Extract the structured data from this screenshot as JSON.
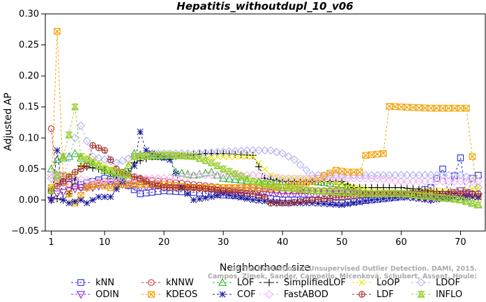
{
  "chart_data": {
    "type": "line",
    "title": "Hepatitis_withoutdupl_10_v06",
    "xlabel": "Neighborhood size",
    "ylabel": "Adjusted AP",
    "xlim": [
      1,
      73
    ],
    "ylim": [
      -0.05,
      0.3
    ],
    "xticks": [
      "1",
      "10",
      "20",
      "30",
      "40",
      "50",
      "60",
      "70"
    ],
    "yticks": [
      "−0.05",
      "0.00",
      "0.05",
      "0.10",
      "0.15",
      "0.20",
      "0.25",
      "0.30"
    ],
    "credit_line1": "Campos, Zimek, Sander, Campello, Micenková, Schubert, Assent, Houle:",
    "credit_line2": "On the Evaluation of Unsupervised Outlier Detection. DAMI, 2015.",
    "series": [
      {
        "name": "kNN",
        "color": "#2a2ad4",
        "marker": "square",
        "anchors": [
          [
            1,
            0.015
          ],
          [
            2,
            0.04
          ],
          [
            4,
            0.035
          ],
          [
            6,
            0.025
          ],
          [
            8,
            0.03
          ],
          [
            10,
            0.035
          ],
          [
            13,
            0.03
          ],
          [
            16,
            0.01
          ],
          [
            20,
            0.015
          ],
          [
            25,
            0.012
          ],
          [
            30,
            0.008
          ],
          [
            35,
            0.005
          ],
          [
            40,
            0.0
          ],
          [
            45,
            0.0
          ],
          [
            50,
            -0.005
          ],
          [
            55,
            0.0
          ],
          [
            60,
            0.005
          ],
          [
            65,
            0.02
          ],
          [
            67,
            0.05
          ],
          [
            68,
            0.01
          ],
          [
            70,
            0.068
          ],
          [
            71,
            0.005
          ],
          [
            72,
            0.035
          ],
          [
            73,
            0.04
          ]
        ]
      },
      {
        "name": "kNNW",
        "color": "#d42a2a",
        "marker": "circle",
        "anchors": [
          [
            1,
            0.115
          ],
          [
            2,
            0.03
          ],
          [
            4,
            0.025
          ],
          [
            6,
            0.02
          ],
          [
            8,
            0.025
          ],
          [
            10,
            0.03
          ],
          [
            13,
            0.03
          ],
          [
            16,
            0.033
          ],
          [
            20,
            0.03
          ],
          [
            25,
            0.025
          ],
          [
            30,
            0.02
          ],
          [
            35,
            0.02
          ],
          [
            40,
            0.015
          ],
          [
            45,
            0.015
          ],
          [
            50,
            0.015
          ],
          [
            55,
            0.01
          ],
          [
            60,
            0.01
          ],
          [
            65,
            0.01
          ],
          [
            70,
            0.01
          ],
          [
            73,
            0.01
          ]
        ]
      },
      {
        "name": "LOF",
        "color": "#2ab82a",
        "marker": "triangle-up",
        "anchors": [
          [
            1,
            0.05
          ],
          [
            2,
            0.065
          ],
          [
            4,
            0.07
          ],
          [
            5,
            0.075
          ],
          [
            7,
            0.06
          ],
          [
            9,
            0.055
          ],
          [
            11,
            0.04
          ],
          [
            13,
            0.035
          ],
          [
            15,
            0.075
          ],
          [
            18,
            0.07
          ],
          [
            21,
            0.07
          ],
          [
            22,
            0.045
          ],
          [
            25,
            0.04
          ],
          [
            28,
            0.045
          ],
          [
            30,
            0.035
          ],
          [
            35,
            0.03
          ],
          [
            40,
            0.03
          ],
          [
            45,
            0.03
          ],
          [
            50,
            0.025
          ],
          [
            55,
            0.01
          ],
          [
            60,
            0.01
          ],
          [
            65,
            0.01
          ],
          [
            70,
            0.0
          ],
          [
            73,
            -0.008
          ]
        ]
      },
      {
        "name": "SimplifiedLOF",
        "color": "#000000",
        "marker": "plus",
        "anchors": [
          [
            1,
            0.003
          ],
          [
            2,
            0.002
          ],
          [
            3,
            0.0
          ],
          [
            4,
            0.01
          ],
          [
            6,
            0.055
          ],
          [
            9,
            0.05
          ],
          [
            12,
            0.04
          ],
          [
            14,
            0.045
          ],
          [
            15,
            0.06
          ],
          [
            18,
            0.07
          ],
          [
            21,
            0.07
          ],
          [
            24,
            0.072
          ],
          [
            27,
            0.075
          ],
          [
            30,
            0.075
          ],
          [
            35,
            0.072
          ],
          [
            37,
            0.035
          ],
          [
            40,
            0.03
          ],
          [
            45,
            0.03
          ],
          [
            50,
            0.03
          ],
          [
            52,
            0.02
          ],
          [
            55,
            0.02
          ],
          [
            60,
            0.02
          ],
          [
            65,
            0.015
          ],
          [
            70,
            0.01
          ],
          [
            73,
            0.01
          ]
        ]
      },
      {
        "name": "LoOP",
        "color": "#e6e600",
        "marker": "x",
        "anchors": [
          [
            1,
            0.02
          ],
          [
            3,
            0.04
          ],
          [
            5,
            0.04
          ],
          [
            7,
            0.07
          ],
          [
            9,
            0.06
          ],
          [
            11,
            0.05
          ],
          [
            13,
            0.045
          ],
          [
            15,
            0.07
          ],
          [
            18,
            0.075
          ],
          [
            21,
            0.075
          ],
          [
            25,
            0.07
          ],
          [
            30,
            0.07
          ],
          [
            35,
            0.07
          ],
          [
            38,
            0.04
          ],
          [
            40,
            0.035
          ],
          [
            45,
            0.035
          ],
          [
            50,
            0.025
          ],
          [
            55,
            0.015
          ],
          [
            60,
            0.012
          ],
          [
            65,
            0.015
          ],
          [
            70,
            0.015
          ],
          [
            73,
            0.02
          ]
        ]
      },
      {
        "name": "LDOF",
        "color": "#b0b0f0",
        "marker": "diamond",
        "anchors": [
          [
            1,
            0.035
          ],
          [
            3,
            0.035
          ],
          [
            5,
            0.1
          ],
          [
            6,
            0.12
          ],
          [
            8,
            0.07
          ],
          [
            10,
            0.065
          ],
          [
            12,
            0.06
          ],
          [
            15,
            0.07
          ],
          [
            18,
            0.075
          ],
          [
            21,
            0.075
          ],
          [
            25,
            0.075
          ],
          [
            30,
            0.078
          ],
          [
            35,
            0.08
          ],
          [
            38,
            0.08
          ],
          [
            40,
            0.075
          ],
          [
            42,
            0.065
          ],
          [
            45,
            0.04
          ],
          [
            50,
            0.04
          ],
          [
            55,
            0.04
          ],
          [
            60,
            0.04
          ],
          [
            65,
            0.04
          ],
          [
            70,
            0.04
          ],
          [
            72,
            0.035
          ],
          [
            73,
            0.02
          ]
        ]
      },
      {
        "name": "ODIN",
        "color": "#8a2ad4",
        "marker": "triangle-down",
        "anchors": [
          [
            1,
            0.0
          ],
          [
            2,
            0.01
          ],
          [
            4,
            0.015
          ],
          [
            6,
            0.02
          ],
          [
            8,
            0.02
          ],
          [
            10,
            0.025
          ],
          [
            13,
            0.025
          ],
          [
            16,
            0.02
          ],
          [
            20,
            0.025
          ],
          [
            25,
            0.02
          ],
          [
            30,
            0.015
          ],
          [
            35,
            0.015
          ],
          [
            40,
            0.01
          ],
          [
            45,
            0.01
          ],
          [
            50,
            0.01
          ],
          [
            55,
            0.01
          ],
          [
            60,
            0.01
          ],
          [
            65,
            0.0
          ],
          [
            70,
            0.015
          ],
          [
            73,
            0.005
          ]
        ]
      },
      {
        "name": "KDEOS",
        "color": "#f0a000",
        "marker": "square-x",
        "anchors": [
          [
            1,
            0.02
          ],
          [
            2,
            0.272
          ],
          [
            3,
            0.04
          ],
          [
            4,
            0.01
          ],
          [
            5,
            -0.005
          ],
          [
            7,
            0.02
          ],
          [
            9,
            0.025
          ],
          [
            11,
            0.02
          ],
          [
            13,
            0.025
          ],
          [
            16,
            0.025
          ],
          [
            20,
            0.025
          ],
          [
            25,
            0.02
          ],
          [
            30,
            0.02
          ],
          [
            35,
            0.02
          ],
          [
            40,
            0.02
          ],
          [
            45,
            0.03
          ],
          [
            49,
            0.048
          ],
          [
            51,
            0.045
          ],
          [
            53,
            0.045
          ],
          [
            54,
            0.072
          ],
          [
            57,
            0.075
          ],
          [
            58,
            0.151
          ],
          [
            60,
            0.15
          ],
          [
            65,
            0.148
          ],
          [
            71,
            0.148
          ],
          [
            72,
            0.07
          ],
          [
            73,
            0.005
          ]
        ]
      },
      {
        "name": "COF",
        "color": "#1a1a9a",
        "marker": "star",
        "anchors": [
          [
            1,
            0.0
          ],
          [
            2,
            0.08
          ],
          [
            3,
            0.0
          ],
          [
            4,
            -0.005
          ],
          [
            6,
            0.0
          ],
          [
            7,
            -0.005
          ],
          [
            9,
            0.005
          ],
          [
            11,
            0.005
          ],
          [
            13,
            0.03
          ],
          [
            15,
            0.055
          ],
          [
            16,
            0.11
          ],
          [
            17,
            0.08
          ],
          [
            19,
            0.07
          ],
          [
            21,
            0.065
          ],
          [
            23,
            0.02
          ],
          [
            25,
            0.0
          ],
          [
            28,
            0.005
          ],
          [
            30,
            0.01
          ],
          [
            35,
            0.0
          ],
          [
            40,
            -0.005
          ],
          [
            45,
            -0.005
          ],
          [
            50,
            -0.008
          ],
          [
            55,
            0.0
          ],
          [
            60,
            0.005
          ],
          [
            65,
            0.0
          ],
          [
            70,
            0.005
          ],
          [
            73,
            0.005
          ]
        ]
      },
      {
        "name": "FastABOD",
        "color": "#f0b0f0",
        "marker": "diamond",
        "anchors": [
          [
            1,
            0.04
          ],
          [
            3,
            0.04
          ],
          [
            5,
            0.035
          ],
          [
            8,
            0.03
          ],
          [
            10,
            0.03
          ],
          [
            13,
            0.035
          ],
          [
            16,
            0.035
          ],
          [
            20,
            0.035
          ],
          [
            25,
            0.04
          ],
          [
            30,
            0.04
          ],
          [
            35,
            0.04
          ],
          [
            40,
            0.035
          ],
          [
            45,
            0.035
          ],
          [
            50,
            0.035
          ],
          [
            55,
            0.035
          ],
          [
            60,
            0.03
          ],
          [
            65,
            0.03
          ],
          [
            70,
            0.03
          ],
          [
            73,
            0.03
          ]
        ]
      },
      {
        "name": "LDF",
        "color": "#a02a2a",
        "marker": "circle-plus",
        "anchors": [
          [
            1,
            0.015
          ],
          [
            3,
            0.03
          ],
          [
            5,
            0.045
          ],
          [
            7,
            0.055
          ],
          [
            8,
            0.088
          ],
          [
            10,
            0.08
          ],
          [
            12,
            0.05
          ],
          [
            14,
            0.04
          ],
          [
            16,
            0.035
          ],
          [
            18,
            0.025
          ],
          [
            20,
            0.02
          ],
          [
            25,
            0.02
          ],
          [
            30,
            0.015
          ],
          [
            35,
            0.01
          ],
          [
            37,
            0.005
          ],
          [
            38,
            -0.005
          ],
          [
            41,
            -0.005
          ],
          [
            45,
            0.0
          ],
          [
            50,
            0.005
          ],
          [
            55,
            0.01
          ],
          [
            60,
            0.01
          ],
          [
            65,
            0.01
          ],
          [
            70,
            0.01
          ],
          [
            73,
            0.01
          ]
        ]
      },
      {
        "name": "INFLO",
        "color": "#9acd32",
        "marker": "hourglass",
        "anchors": [
          [
            1,
            0.015
          ],
          [
            2,
            0.04
          ],
          [
            3,
            0.07
          ],
          [
            4,
            0.105
          ],
          [
            5,
            0.15
          ],
          [
            6,
            0.07
          ],
          [
            8,
            0.06
          ],
          [
            10,
            0.05
          ],
          [
            12,
            0.045
          ],
          [
            14,
            0.04
          ],
          [
            15,
            0.07
          ],
          [
            18,
            0.072
          ],
          [
            21,
            0.072
          ],
          [
            25,
            0.07
          ],
          [
            28,
            0.06
          ],
          [
            30,
            0.05
          ],
          [
            35,
            0.03
          ],
          [
            40,
            0.02
          ],
          [
            45,
            0.015
          ],
          [
            50,
            0.012
          ],
          [
            55,
            0.01
          ],
          [
            60,
            0.01
          ],
          [
            65,
            0.005
          ],
          [
            70,
            0.0
          ],
          [
            73,
            -0.008
          ]
        ]
      }
    ]
  }
}
